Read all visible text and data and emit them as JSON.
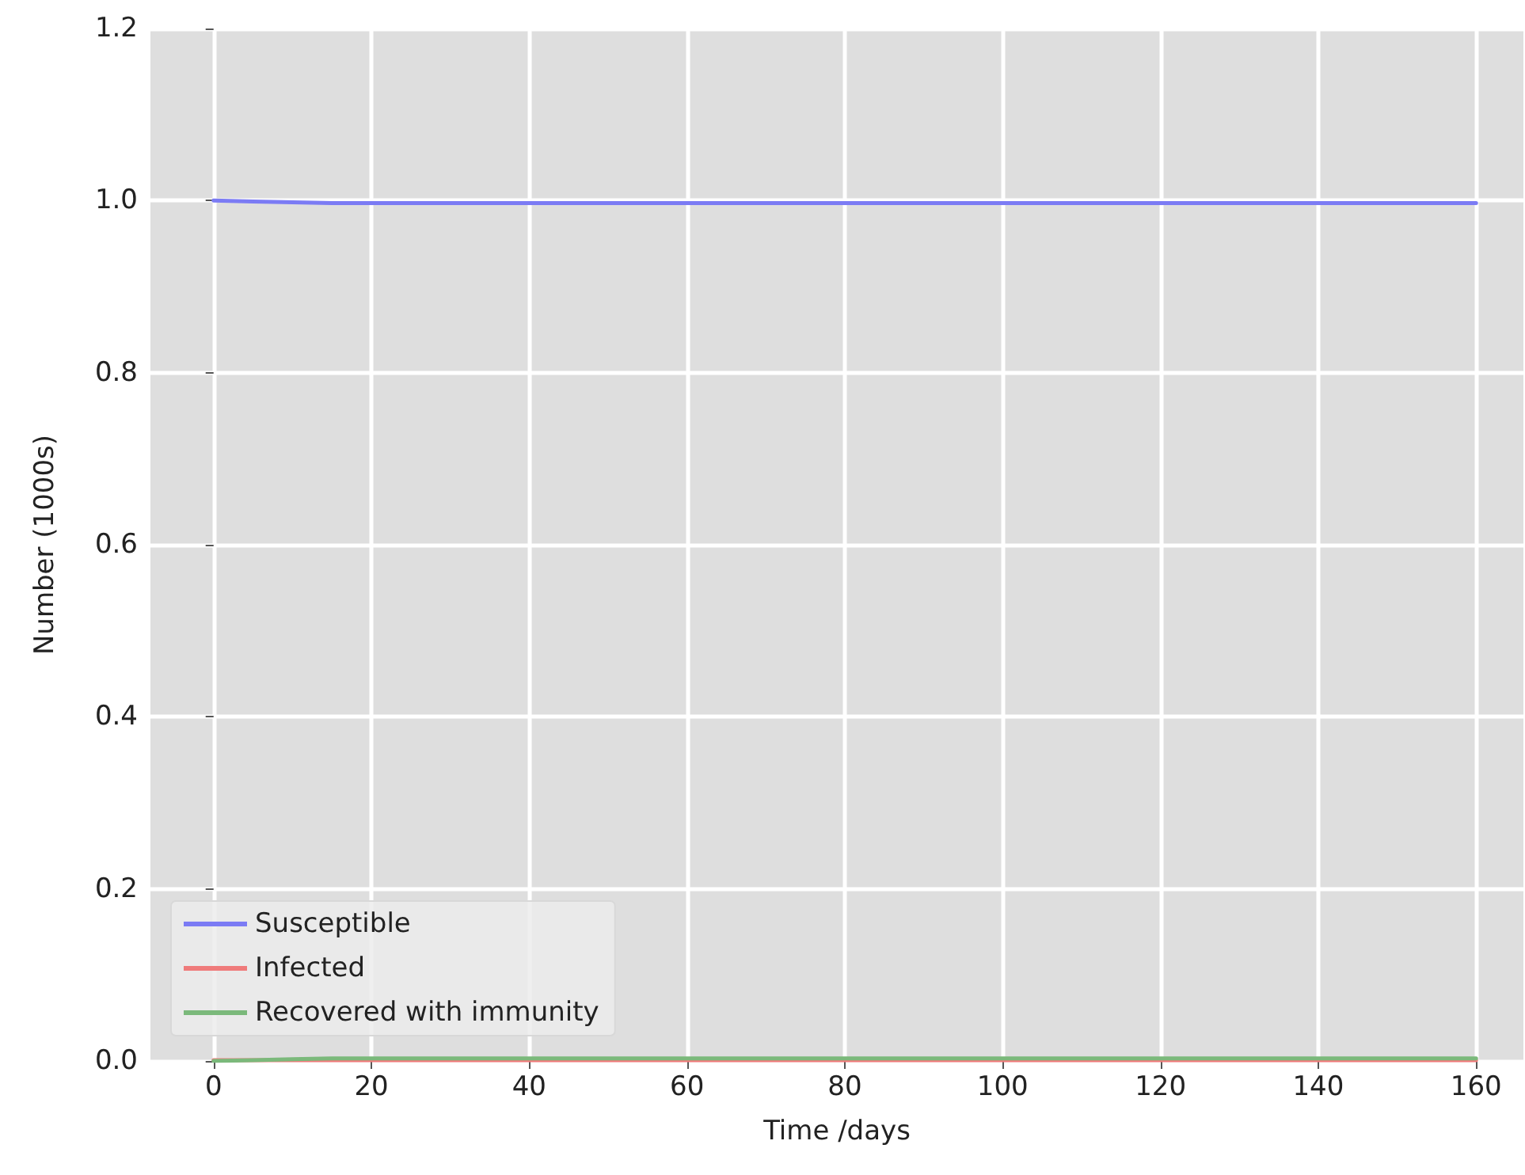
{
  "chart_data": {
    "type": "line",
    "xlabel": "Time /days",
    "ylabel": "Number (1000s)",
    "x": [
      0,
      5,
      10,
      15,
      20,
      40,
      60,
      80,
      100,
      120,
      140,
      160
    ],
    "series": [
      {
        "name": "Susceptible",
        "color": "#7b7bf4",
        "values": [
          1.0,
          0.999,
          0.998,
          0.997,
          0.997,
          0.997,
          0.997,
          0.997,
          0.997,
          0.997,
          0.997,
          0.997
        ]
      },
      {
        "name": "Infected",
        "color": "#ef7b7b",
        "values": [
          0.001,
          0.001,
          0.001,
          0.001,
          0.001,
          0.001,
          0.001,
          0.001,
          0.001,
          0.001,
          0.001,
          0.001
        ]
      },
      {
        "name": "Recovered with immunity",
        "color": "#7bb97b",
        "values": [
          0,
          0.001,
          0.002,
          0.003,
          0.003,
          0.003,
          0.003,
          0.003,
          0.003,
          0.003,
          0.003,
          0.003
        ]
      }
    ],
    "xlim": [
      -8,
      166
    ],
    "xticks": [
      0,
      20,
      40,
      60,
      80,
      100,
      120,
      140,
      160
    ],
    "ylim": [
      0,
      1.2
    ],
    "yticks": [
      {
        "value": 0,
        "label": "0.0"
      },
      0.2,
      0.4,
      0.6,
      0.8,
      {
        "value": 1,
        "label": "1.0"
      },
      1.2
    ],
    "grid": true,
    "legend": "bottom left",
    "marker": "none",
    "line_style": "solid"
  }
}
